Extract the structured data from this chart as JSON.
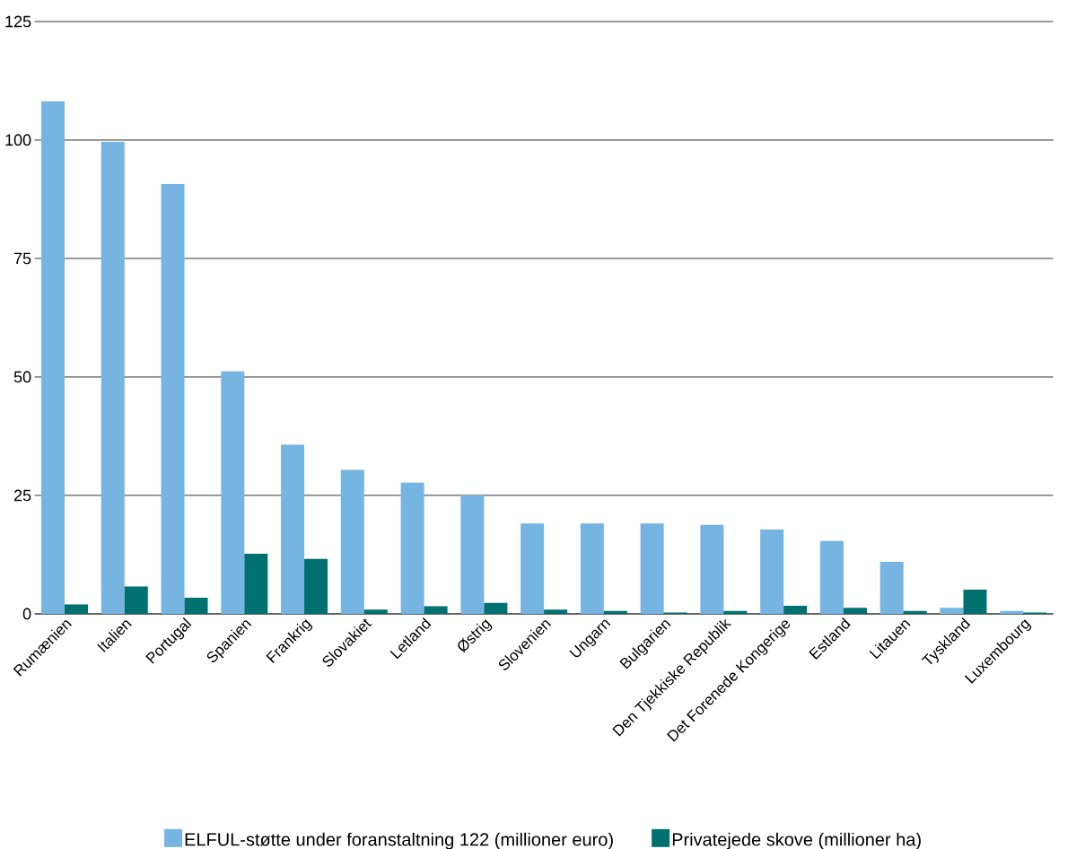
{
  "chart_data": {
    "type": "bar",
    "categories": [
      "Rumænien",
      "Italien",
      "Portugal",
      "Spanien",
      "Frankrig",
      "Slovakiet",
      "Letland",
      "Østrig",
      "Slovenien",
      "Ungarn",
      "Bulgarien",
      "Den Tjekkiske Republik",
      "Det Forenede Kongerige",
      "Estland",
      "Litauen",
      "Tyskland",
      "Luxembourg"
    ],
    "series": [
      {
        "name": "ELFUL-støtte under foranstaltning 122 (millioner euro)",
        "color": "#76b4e2",
        "values": [
          108.2,
          99.6,
          90.7,
          51.2,
          35.7,
          30.4,
          27.7,
          25.0,
          19.1,
          19.1,
          19.1,
          18.8,
          17.8,
          15.4,
          11.0,
          1.3,
          0.6
        ]
      },
      {
        "name": "Privatejede skove (millioner ha)",
        "color": "#007070",
        "values": [
          2.0,
          5.8,
          3.4,
          12.7,
          11.6,
          0.9,
          1.6,
          2.3,
          0.9,
          0.6,
          0.3,
          0.6,
          1.7,
          1.3,
          0.6,
          5.1,
          0.3
        ]
      }
    ],
    "ylim": [
      0,
      125
    ],
    "yticks": [
      0,
      25,
      50,
      75,
      100,
      125
    ],
    "grid": "y",
    "legend": "bottom"
  }
}
